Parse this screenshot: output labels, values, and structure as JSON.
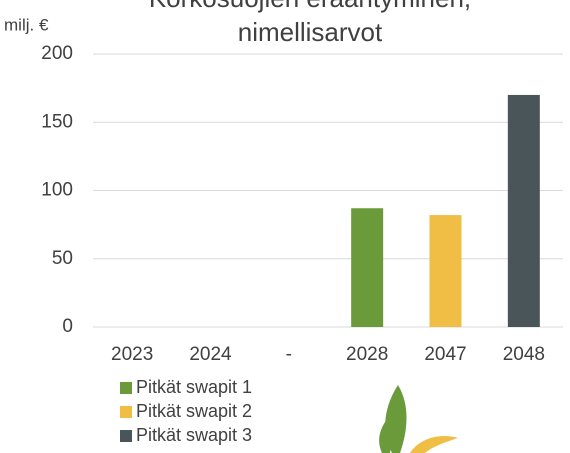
{
  "chart_data": {
    "type": "bar",
    "stacked": true,
    "title": [
      "Korkosuojien erääntyminen,",
      "nimellisarvot"
    ],
    "y_label": "milj. €",
    "categories": [
      "2023",
      "2024",
      "-",
      "2028",
      "2047",
      "2048"
    ],
    "series": [
      {
        "name": "Pitkät swapit 1",
        "color": "#6a9a3a",
        "values": [
          null,
          null,
          null,
          87,
          null,
          null
        ]
      },
      {
        "name": "Pitkät swapit 2",
        "color": "#f0bd45",
        "values": [
          null,
          null,
          null,
          null,
          82,
          null
        ]
      },
      {
        "name": "Pitkät swapit 3",
        "color": "#4a5559",
        "values": [
          null,
          null,
          null,
          null,
          null,
          170
        ]
      }
    ],
    "ylim": [
      0,
      200
    ],
    "yticks": [
      0,
      50,
      100,
      150,
      200
    ],
    "grid": true,
    "legend": "bottom-left"
  }
}
